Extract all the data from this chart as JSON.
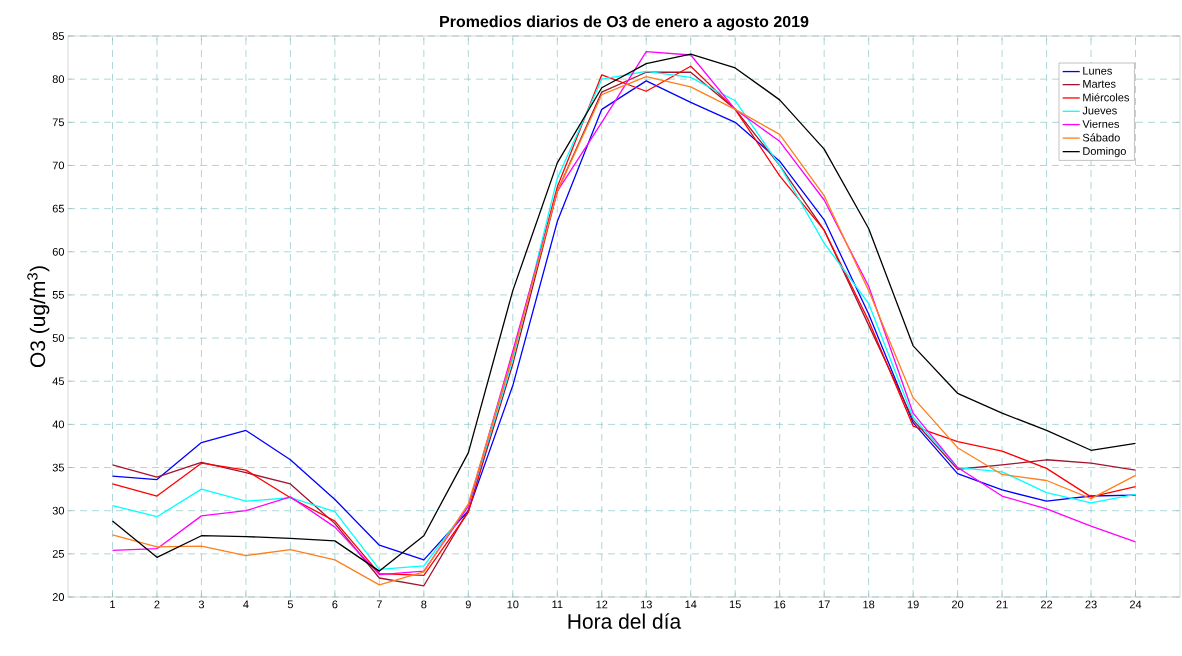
{
  "chart_data": {
    "type": "line",
    "title": "Promedios diarios de O3 de enero a agosto 2019",
    "xlabel": "Hora del día",
    "ylabel": "O3 (ug/m$^{3}$)",
    "x": [
      1,
      2,
      3,
      4,
      5,
      6,
      7,
      8,
      9,
      10,
      11,
      12,
      13,
      14,
      15,
      16,
      17,
      18,
      19,
      20,
      21,
      22,
      23,
      24
    ],
    "xlim": [
      0,
      25
    ],
    "xticks": [
      1,
      2,
      3,
      4,
      5,
      6,
      7,
      8,
      9,
      10,
      11,
      12,
      13,
      14,
      15,
      16,
      17,
      18,
      19,
      20,
      21,
      22,
      23,
      24
    ],
    "ylim": [
      20,
      85
    ],
    "yticks": [
      20,
      25,
      30,
      35,
      40,
      45,
      50,
      55,
      60,
      65,
      70,
      75,
      80,
      85
    ],
    "grid": true,
    "legend": "top right",
    "line_style": "solid",
    "marker": "none",
    "series": [
      {
        "name": "Lunes",
        "color": "#0000ff",
        "values": [
          34.0,
          33.6,
          37.9,
          39.3,
          35.9,
          31.3,
          26.0,
          24.3,
          30.0,
          44.5,
          63.5,
          76.5,
          79.8,
          77.3,
          75.0,
          70.5,
          63.7,
          52.8,
          40.2,
          34.3,
          32.4,
          31.1,
          31.7,
          31.8
        ]
      },
      {
        "name": "Martes",
        "color": "#a2142f",
        "values": [
          35.3,
          33.9,
          35.6,
          34.4,
          33.1,
          28.5,
          22.2,
          21.3,
          30.0,
          47.0,
          67.0,
          78.5,
          80.8,
          80.8,
          76.5,
          70.0,
          62.5,
          51.5,
          40.5,
          34.8,
          35.3,
          35.9,
          35.5,
          34.7
        ]
      },
      {
        "name": "Miércoles",
        "color": "#ff0000",
        "values": [
          33.1,
          31.7,
          35.5,
          34.7,
          31.5,
          28.8,
          22.7,
          22.5,
          29.8,
          48.0,
          67.5,
          80.5,
          78.6,
          81.5,
          76.5,
          68.8,
          62.5,
          52.0,
          39.8,
          38.0,
          36.9,
          34.9,
          31.6,
          32.8
        ]
      },
      {
        "name": "Jueves",
        "color": "#00ffff",
        "values": [
          30.6,
          29.3,
          32.5,
          31.1,
          31.5,
          29.9,
          23.2,
          23.6,
          30.5,
          47.5,
          68.5,
          80.0,
          80.9,
          80.2,
          77.5,
          70.0,
          61.0,
          54.0,
          40.8,
          35.0,
          34.5,
          32.1,
          30.9,
          31.9
        ]
      },
      {
        "name": "Viernes",
        "color": "#ff00ff",
        "values": [
          25.4,
          25.6,
          29.4,
          30.0,
          31.6,
          28.1,
          22.6,
          23.0,
          30.5,
          48.5,
          67.0,
          75.0,
          83.2,
          82.8,
          76.5,
          72.8,
          66.0,
          56.0,
          41.3,
          35.0,
          31.7,
          30.2,
          28.2,
          26.4
        ]
      },
      {
        "name": "Sábado",
        "color": "#ff7f1a",
        "values": [
          27.2,
          25.8,
          25.9,
          24.8,
          25.5,
          24.3,
          21.4,
          22.9,
          30.8,
          48.0,
          67.0,
          78.2,
          80.3,
          79.1,
          76.5,
          73.6,
          66.5,
          55.5,
          43.1,
          37.3,
          34.2,
          33.5,
          31.4,
          34.1
        ]
      },
      {
        "name": "Domingo",
        "color": "#000000",
        "values": [
          28.8,
          24.6,
          27.1,
          27.0,
          26.8,
          26.5,
          23.0,
          27.1,
          36.7,
          55.5,
          70.3,
          79.0,
          81.8,
          82.9,
          81.3,
          77.6,
          71.9,
          62.7,
          49.1,
          43.6,
          41.3,
          39.3,
          37.0,
          37.8
        ]
      }
    ]
  }
}
